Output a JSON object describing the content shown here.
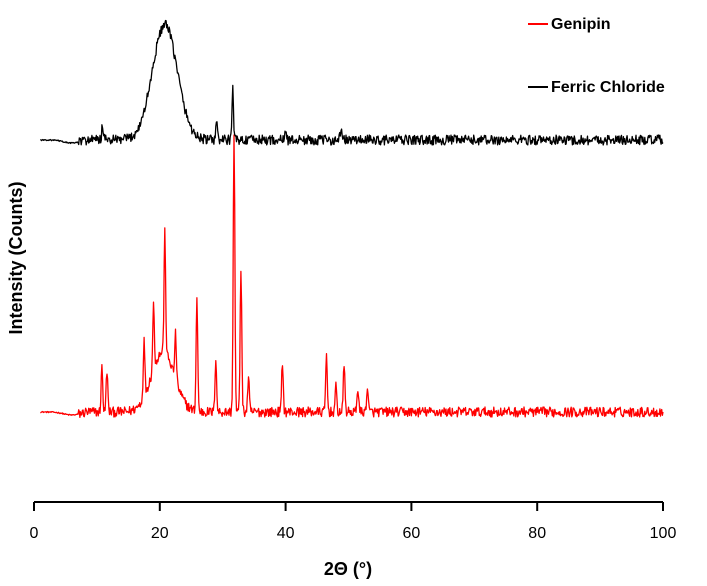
{
  "chart_data": {
    "type": "line",
    "title": "",
    "xlabel": "2Θ (°)",
    "ylabel": "Intensity (Counts)",
    "xlim": [
      0,
      100
    ],
    "xticks": [
      0,
      20,
      40,
      60,
      80,
      100
    ],
    "y_axis_visible": false,
    "grid": false,
    "legend_position": "top-right",
    "colors": {
      "genipin": "#ff0000",
      "ferric": "#000000"
    },
    "series": [
      {
        "name": "Genipin",
        "color": "#ff0000",
        "baseline_level": 412,
        "noise": 5,
        "peaks": [
          {
            "x": 10.8,
            "h": 45
          },
          {
            "x": 11.6,
            "h": 42
          },
          {
            "x": 17.5,
            "h": 55
          },
          {
            "x": 19.0,
            "h": 65
          },
          {
            "x": 20.8,
            "h": 120
          },
          {
            "x": 22.5,
            "h": 45
          },
          {
            "x": 25.9,
            "h": 115
          },
          {
            "x": 28.9,
            "h": 55
          },
          {
            "x": 31.8,
            "h": 280
          },
          {
            "x": 32.9,
            "h": 145
          },
          {
            "x": 34.1,
            "h": 35
          },
          {
            "x": 39.5,
            "h": 50
          },
          {
            "x": 46.5,
            "h": 57
          },
          {
            "x": 48.0,
            "h": 25
          },
          {
            "x": 49.3,
            "h": 48
          },
          {
            "x": 51.5,
            "h": 25
          },
          {
            "x": 53.0,
            "h": 25
          }
        ],
        "broad": [
          {
            "x": 20.5,
            "h": 60,
            "w": 2.6
          }
        ]
      },
      {
        "name": "Ferric Chloride",
        "color": "#000000",
        "baseline_level": 140,
        "noise": 5,
        "peaks": [
          {
            "x": 10.9,
            "h": 15
          },
          {
            "x": 29.0,
            "h": 20
          },
          {
            "x": 31.6,
            "h": 50
          },
          {
            "x": 40.0,
            "h": 10
          },
          {
            "x": 48.8,
            "h": 12
          }
        ],
        "broad": [
          {
            "x": 20.8,
            "h": 115,
            "w": 2.8
          }
        ]
      }
    ]
  }
}
